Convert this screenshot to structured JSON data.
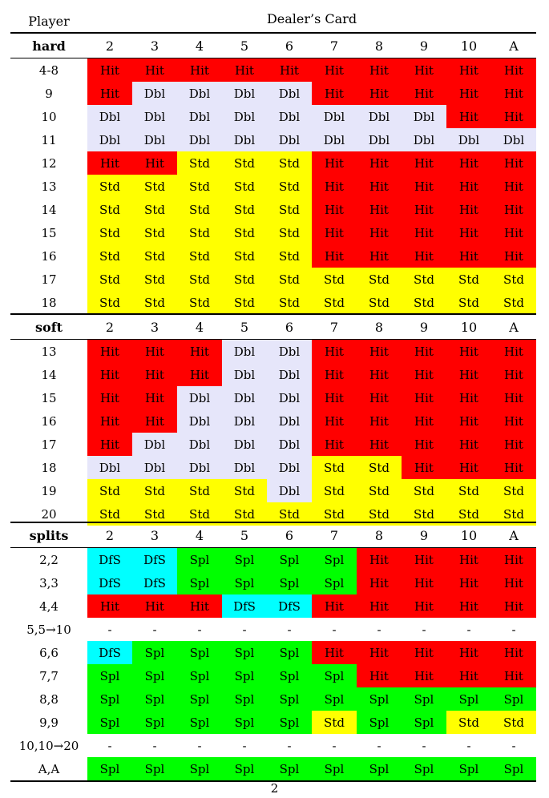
{
  "header": {
    "player_label": "Player",
    "dealer_label": "Dealer’s Card"
  },
  "colors": {
    "Hit": "#ff0000",
    "Dbl": "#e6e6fa",
    "Std": "#ffff00",
    "Spl": "#00ff00",
    "DfS": "#00ffff",
    "-": "#ffffff"
  },
  "dealer_cards": [
    "2",
    "3",
    "4",
    "5",
    "6",
    "7",
    "8",
    "9",
    "10",
    "A"
  ],
  "sections": [
    {
      "title": "hard",
      "rows": [
        {
          "label": "4-8",
          "cells": [
            "Hit",
            "Hit",
            "Hit",
            "Hit",
            "Hit",
            "Hit",
            "Hit",
            "Hit",
            "Hit",
            "Hit"
          ]
        },
        {
          "label": "9",
          "cells": [
            "Hit",
            "Dbl",
            "Dbl",
            "Dbl",
            "Dbl",
            "Hit",
            "Hit",
            "Hit",
            "Hit",
            "Hit"
          ]
        },
        {
          "label": "10",
          "cells": [
            "Dbl",
            "Dbl",
            "Dbl",
            "Dbl",
            "Dbl",
            "Dbl",
            "Dbl",
            "Dbl",
            "Hit",
            "Hit"
          ]
        },
        {
          "label": "11",
          "cells": [
            "Dbl",
            "Dbl",
            "Dbl",
            "Dbl",
            "Dbl",
            "Dbl",
            "Dbl",
            "Dbl",
            "Dbl",
            "Dbl"
          ]
        },
        {
          "label": "12",
          "cells": [
            "Hit",
            "Hit",
            "Std",
            "Std",
            "Std",
            "Hit",
            "Hit",
            "Hit",
            "Hit",
            "Hit"
          ]
        },
        {
          "label": "13",
          "cells": [
            "Std",
            "Std",
            "Std",
            "Std",
            "Std",
            "Hit",
            "Hit",
            "Hit",
            "Hit",
            "Hit"
          ]
        },
        {
          "label": "14",
          "cells": [
            "Std",
            "Std",
            "Std",
            "Std",
            "Std",
            "Hit",
            "Hit",
            "Hit",
            "Hit",
            "Hit"
          ]
        },
        {
          "label": "15",
          "cells": [
            "Std",
            "Std",
            "Std",
            "Std",
            "Std",
            "Hit",
            "Hit",
            "Hit",
            "Hit",
            "Hit"
          ]
        },
        {
          "label": "16",
          "cells": [
            "Std",
            "Std",
            "Std",
            "Std",
            "Std",
            "Hit",
            "Hit",
            "Hit",
            "Hit",
            "Hit"
          ]
        },
        {
          "label": "17",
          "cells": [
            "Std",
            "Std",
            "Std",
            "Std",
            "Std",
            "Std",
            "Std",
            "Std",
            "Std",
            "Std"
          ]
        },
        {
          "label": "18",
          "cells": [
            "Std",
            "Std",
            "Std",
            "Std",
            "Std",
            "Std",
            "Std",
            "Std",
            "Std",
            "Std"
          ]
        }
      ]
    },
    {
      "title": "soft",
      "rows": [
        {
          "label": "13",
          "cells": [
            "Hit",
            "Hit",
            "Hit",
            "Dbl",
            "Dbl",
            "Hit",
            "Hit",
            "Hit",
            "Hit",
            "Hit"
          ]
        },
        {
          "label": "14",
          "cells": [
            "Hit",
            "Hit",
            "Hit",
            "Dbl",
            "Dbl",
            "Hit",
            "Hit",
            "Hit",
            "Hit",
            "Hit"
          ]
        },
        {
          "label": "15",
          "cells": [
            "Hit",
            "Hit",
            "Dbl",
            "Dbl",
            "Dbl",
            "Hit",
            "Hit",
            "Hit",
            "Hit",
            "Hit"
          ]
        },
        {
          "label": "16",
          "cells": [
            "Hit",
            "Hit",
            "Dbl",
            "Dbl",
            "Dbl",
            "Hit",
            "Hit",
            "Hit",
            "Hit",
            "Hit"
          ]
        },
        {
          "label": "17",
          "cells": [
            "Hit",
            "Dbl",
            "Dbl",
            "Dbl",
            "Dbl",
            "Hit",
            "Hit",
            "Hit",
            "Hit",
            "Hit"
          ]
        },
        {
          "label": "18",
          "cells": [
            "Dbl",
            "Dbl",
            "Dbl",
            "Dbl",
            "Dbl",
            "Std",
            "Std",
            "Hit",
            "Hit",
            "Hit"
          ]
        },
        {
          "label": "19",
          "cells": [
            "Std",
            "Std",
            "Std",
            "Std",
            "Dbl",
            "Std",
            "Std",
            "Std",
            "Std",
            "Std"
          ]
        },
        {
          "label": "20",
          "cells": [
            "Std",
            "Std",
            "Std",
            "Std",
            "Std",
            "Std",
            "Std",
            "Std",
            "Std",
            "Std"
          ]
        }
      ]
    },
    {
      "title": "splits",
      "rows": [
        {
          "label": "2,2",
          "cells": [
            "DfS",
            "DfS",
            "Spl",
            "Spl",
            "Spl",
            "Spl",
            "Hit",
            "Hit",
            "Hit",
            "Hit"
          ]
        },
        {
          "label": "3,3",
          "cells": [
            "DfS",
            "DfS",
            "Spl",
            "Spl",
            "Spl",
            "Spl",
            "Hit",
            "Hit",
            "Hit",
            "Hit"
          ]
        },
        {
          "label": "4,4",
          "cells": [
            "Hit",
            "Hit",
            "Hit",
            "DfS",
            "DfS",
            "Hit",
            "Hit",
            "Hit",
            "Hit",
            "Hit"
          ]
        },
        {
          "label": "5,5→10",
          "cells": [
            "-",
            "-",
            "-",
            "-",
            "-",
            "-",
            "-",
            "-",
            "-",
            "-"
          ]
        },
        {
          "label": "6,6",
          "cells": [
            "DfS",
            "Spl",
            "Spl",
            "Spl",
            "Spl",
            "Hit",
            "Hit",
            "Hit",
            "Hit",
            "Hit"
          ]
        },
        {
          "label": "7,7",
          "cells": [
            "Spl",
            "Spl",
            "Spl",
            "Spl",
            "Spl",
            "Spl",
            "Hit",
            "Hit",
            "Hit",
            "Hit"
          ]
        },
        {
          "label": "8,8",
          "cells": [
            "Spl",
            "Spl",
            "Spl",
            "Spl",
            "Spl",
            "Spl",
            "Spl",
            "Spl",
            "Spl",
            "Spl"
          ]
        },
        {
          "label": "9,9",
          "cells": [
            "Spl",
            "Spl",
            "Spl",
            "Spl",
            "Spl",
            "Std",
            "Spl",
            "Spl",
            "Std",
            "Std"
          ]
        },
        {
          "label": "10,10→20",
          "cells": [
            "-",
            "-",
            "-",
            "-",
            "-",
            "-",
            "-",
            "-",
            "-",
            "-"
          ]
        },
        {
          "label": "A,A",
          "cells": [
            "Spl",
            "Spl",
            "Spl",
            "Spl",
            "Spl",
            "Spl",
            "Spl",
            "Spl",
            "Spl",
            "Spl"
          ]
        }
      ]
    }
  ],
  "page_number": "2"
}
